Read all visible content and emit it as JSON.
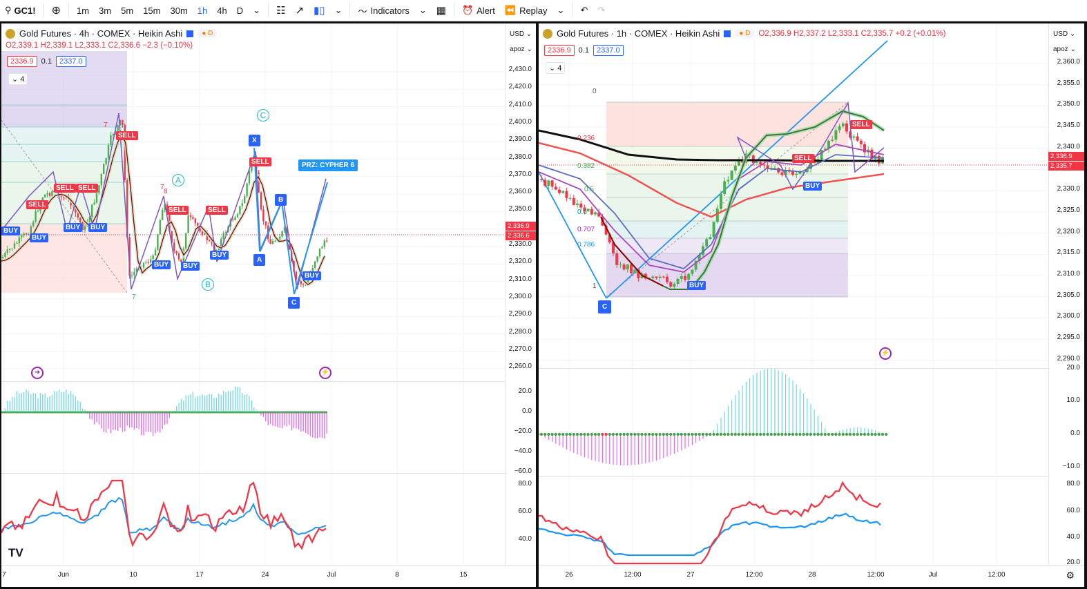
{
  "toolbar": {
    "symbol": "GC1!",
    "intervals": [
      "1m",
      "3m",
      "5m",
      "15m",
      "30m",
      "1h",
      "4h",
      "D"
    ],
    "active_interval": "1h",
    "indicators_label": "Indicators",
    "alert_label": "Alert",
    "replay_label": "Replay"
  },
  "left": {
    "title": "Gold Futures · 4h · COMEX · Heikin Ashi",
    "delay_badge": "D",
    "ohlc": "O2,339.1  H2,339.1  L2,333.1  C2,336.6  −2.3 (−0.10%)",
    "bid": "2336.9",
    "spread": "0.1",
    "ask": "2337.0",
    "indicator_count": "4",
    "currency": "USD",
    "scale_mode": "apoz",
    "price_labels": [
      "2,430.0",
      "2,420.0",
      "2,410.0",
      "2,400.0",
      "2,390.0",
      "2,380.0",
      "2,370.0",
      "2,360.0",
      "2,350.0",
      "2,340.0",
      "2,330.0",
      "2,320.0",
      "2,310.0",
      "2,300.0",
      "2,290.0",
      "2,280.0",
      "2,270.0",
      "2,260.0"
    ],
    "last_price_1": "2,336.9",
    "last_price_2": "2,336.6",
    "osc_labels": [
      "20.0",
      "0.0",
      "−20.0",
      "−40.0",
      "−60.0"
    ],
    "rsi_labels": [
      "80.0",
      "60.0",
      "40.0"
    ],
    "time_labels": [
      "7",
      "Jun",
      "10",
      "17",
      "24",
      "Jul",
      "8",
      "15"
    ],
    "pattern_tag": "PRZ: CYPHER 6",
    "points": {
      "x": "X",
      "a": "A",
      "b": "B",
      "c": "C"
    },
    "waves": {
      "a": "A",
      "b": "B",
      "c": "C"
    },
    "buy": "BUY",
    "sell": "SELL",
    "count_seven": "7",
    "count_eight": "8"
  },
  "right": {
    "title": "Gold Futures · 1h · COMEX · Heikin Ashi",
    "delay_badge": "D",
    "ohlc": "O2,336.9  H2,337.2  L2,333.1  C2,335.7  +0.2 (+0.01%)",
    "bid": "2336.9",
    "spread": "0.1",
    "ask": "2337.0",
    "indicator_count": "4",
    "currency": "USD",
    "scale_mode": "apoz",
    "price_labels": [
      "2,360.0",
      "2,355.0",
      "2,350.0",
      "2,345.0",
      "2,340.0",
      "2,335.0",
      "2,330.0",
      "2,325.0",
      "2,320.0",
      "2,315.0",
      "2,310.0",
      "2,305.0",
      "2,300.0",
      "2,295.0",
      "2,290.0"
    ],
    "last_price_1": "2,336.9",
    "last_price_2": "2,335.7",
    "osc_labels": [
      "20.0",
      "10.0",
      "0.0",
      "−10.0"
    ],
    "rsi_labels": [
      "80.0",
      "60.0",
      "40.0",
      "20.0"
    ],
    "time_labels": [
      "26",
      "12:00",
      "27",
      "12:00",
      "28",
      "12:00",
      "Jul",
      "12:00"
    ],
    "fib_levels": [
      "0",
      "0.236",
      "0.382",
      "0.5",
      "0.6",
      "0.707",
      "0.786",
      "1"
    ],
    "point_c": "C",
    "buy": "BUY",
    "sell": "SELL"
  },
  "colors": {
    "up": "#26a69a",
    "down": "#f23645",
    "accent": "#2962ff"
  }
}
